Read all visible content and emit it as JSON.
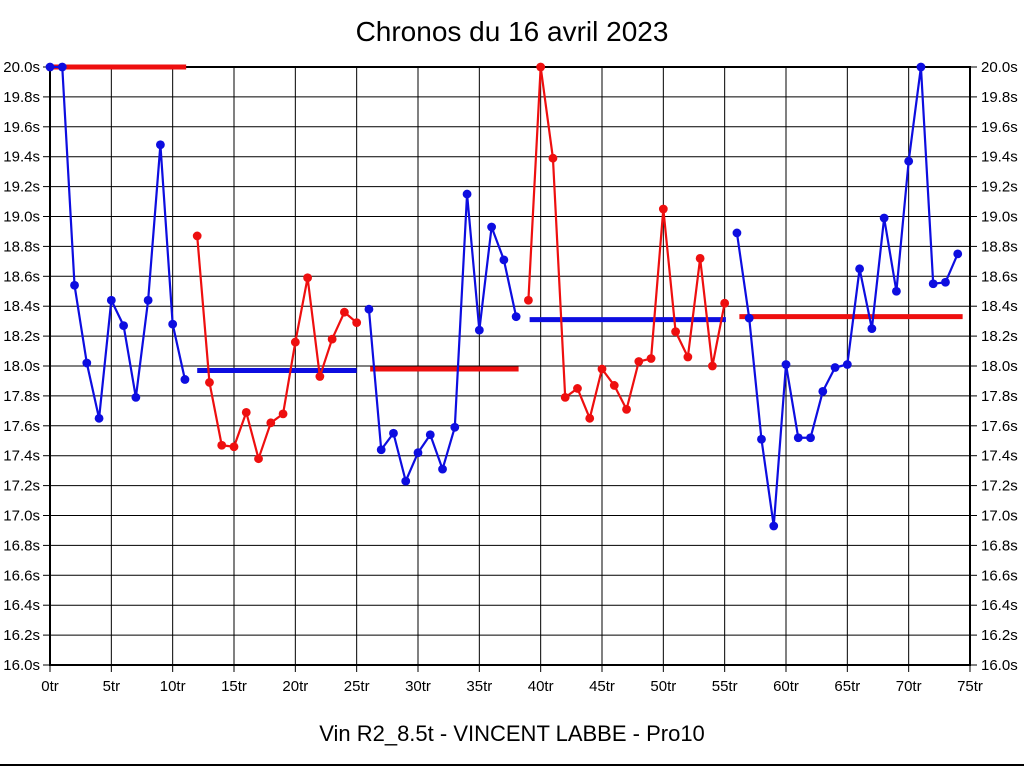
{
  "chart_data": {
    "type": "line",
    "title": "Chronos du 16 avril 2023",
    "caption": "Vin R2_8.5t - VINCENT LABBE - Pro10",
    "x_unit": "tr",
    "y_unit": "s",
    "xlim": [
      0,
      75
    ],
    "ylim": [
      16.0,
      20.0
    ],
    "x_tick_step": 5,
    "y_tick_step": 0.2,
    "grid": true,
    "legend": "none",
    "x_tick_labels": [
      "0tr",
      "5tr",
      "10tr",
      "15tr",
      "20tr",
      "25tr",
      "30tr",
      "35tr",
      "40tr",
      "45tr",
      "50tr",
      "55tr",
      "60tr",
      "65tr",
      "70tr",
      "75tr"
    ],
    "y_tick_labels": [
      "20.0s",
      "19.8s",
      "19.6s",
      "19.4s",
      "19.2s",
      "19.0s",
      "18.8s",
      "18.6s",
      "18.4s",
      "18.2s",
      "18.0s",
      "17.8s",
      "17.6s",
      "17.4s",
      "17.2s",
      "17.0s",
      "16.8s",
      "16.6s",
      "16.4s",
      "16.2s",
      "16.0s"
    ],
    "colors": {
      "blue": "#0d0de0",
      "red": "#ee0f0f",
      "grid": "#000000",
      "text": "#000000"
    },
    "stints": [
      {
        "name": "stint-1",
        "color": "blue",
        "start_lap": 0,
        "values": [
          20.0,
          20.0,
          18.54,
          18.02,
          17.65,
          18.44,
          18.27,
          17.79,
          18.44,
          19.48,
          18.28,
          17.91
        ]
      },
      {
        "name": "stint-2",
        "color": "red",
        "start_lap": 12,
        "values": [
          18.87,
          17.89,
          17.47,
          17.46,
          17.69,
          17.38,
          17.62,
          17.68,
          18.16,
          18.59,
          17.93,
          18.18,
          18.36,
          18.29
        ]
      },
      {
        "name": "stint-3",
        "color": "blue",
        "start_lap": 26,
        "values": [
          18.38,
          17.44,
          17.55,
          17.23,
          17.42,
          17.54,
          17.31,
          17.59,
          19.15,
          18.24,
          18.93,
          18.71,
          18.33
        ]
      },
      {
        "name": "stint-4",
        "color": "red",
        "start_lap": 39,
        "values": [
          18.44,
          20.0,
          19.39,
          17.79,
          17.85,
          17.65,
          17.98,
          17.87,
          17.71,
          18.03,
          18.05,
          19.05,
          18.23,
          18.06,
          18.72,
          18.0,
          18.42
        ]
      },
      {
        "name": "stint-5",
        "color": "blue",
        "start_lap": 56,
        "values": [
          18.89,
          18.32,
          17.51,
          16.93,
          18.01,
          17.52,
          17.52,
          17.83,
          17.99,
          18.01,
          18.65,
          18.25,
          18.99,
          18.5,
          19.37,
          20.0,
          18.55,
          18.56,
          18.75
        ]
      }
    ],
    "average_lines": [
      {
        "color": "red",
        "from_lap": 0.0,
        "to_lap": 11.1,
        "value": 20.0
      },
      {
        "color": "blue",
        "from_lap": 12.0,
        "to_lap": 25.0,
        "value": 17.97
      },
      {
        "color": "red",
        "from_lap": 26.1,
        "to_lap": 38.2,
        "value": 17.98
      },
      {
        "color": "blue",
        "from_lap": 39.1,
        "to_lap": 55.1,
        "value": 18.31
      },
      {
        "color": "red",
        "from_lap": 56.2,
        "to_lap": 74.4,
        "value": 18.33
      }
    ]
  }
}
